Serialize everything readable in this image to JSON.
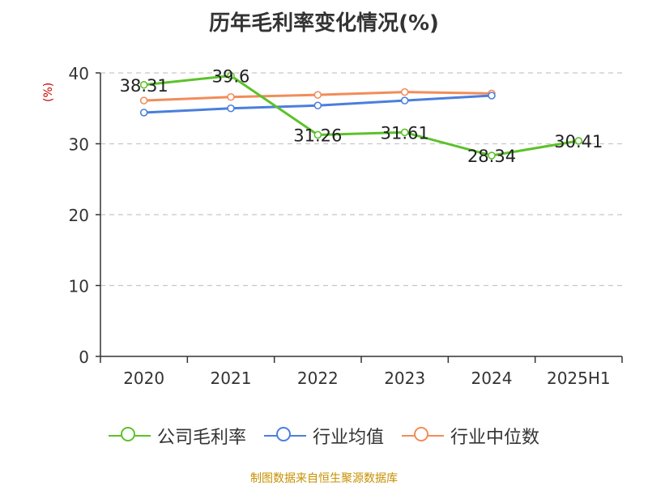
{
  "chart_data": {
    "type": "line",
    "title": "历年毛利率变化情况(%)",
    "ylabel": "(%)",
    "categories": [
      "2020",
      "2021",
      "2022",
      "2023",
      "2024",
      "2025H1"
    ],
    "ylim": [
      0,
      40
    ],
    "yticks": [
      "0",
      "10",
      "20",
      "30",
      "40"
    ],
    "grid": true,
    "legend_position": "bottom",
    "series": [
      {
        "name": "公司毛利率",
        "color": "#5cc22a",
        "values": [
          38.31,
          39.6,
          31.26,
          31.61,
          28.34,
          30.41
        ],
        "labels": [
          "38.31",
          "39.6",
          "31.26",
          "31.61",
          "28.34",
          "30.41"
        ]
      },
      {
        "name": "行业均值",
        "color": "#4a7fdc",
        "values": [
          34.4,
          35.0,
          35.4,
          36.1,
          36.8,
          null
        ]
      },
      {
        "name": "行业中位数",
        "color": "#f28c5a",
        "values": [
          36.1,
          36.6,
          36.9,
          37.3,
          37.1,
          null
        ]
      }
    ]
  },
  "footer": {
    "source": "制图数据来自恒生聚源数据库"
  }
}
